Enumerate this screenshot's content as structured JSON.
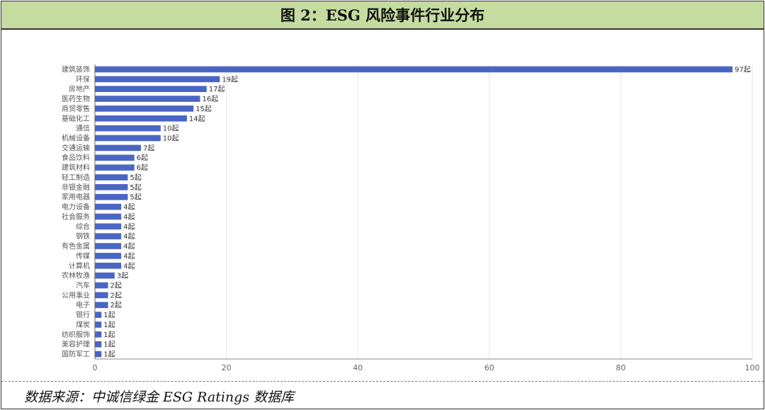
{
  "title": "图 2：ESG 风险事件行业分布",
  "source": "数据来源：中诚信绿金 ESG Ratings 数据库",
  "colors": {
    "bar": "#4a66c4",
    "header_bg": "#c6dba0",
    "grid": "#e6e6e6"
  },
  "chart_data": {
    "type": "bar",
    "orientation": "horizontal",
    "categories": [
      "建筑装饰",
      "环保",
      "房地产",
      "医药生物",
      "商贸零售",
      "基础化工",
      "通信",
      "机械设备",
      "交通运输",
      "食品饮料",
      "建筑材料",
      "轻工制造",
      "非银金融",
      "家用电器",
      "电力设备",
      "社会服务",
      "综合",
      "钢铁",
      "有色金属",
      "传媒",
      "计算机",
      "农林牧渔",
      "汽车",
      "公用事业",
      "电子",
      "银行",
      "煤炭",
      "纺织服饰",
      "美容护理",
      "国防军工"
    ],
    "values": [
      97,
      19,
      17,
      16,
      15,
      14,
      10,
      10,
      7,
      6,
      6,
      5,
      5,
      5,
      4,
      4,
      4,
      4,
      4,
      4,
      4,
      3,
      2,
      2,
      2,
      1,
      1,
      1,
      1,
      1
    ],
    "value_suffix": "起",
    "xlim": [
      0,
      100
    ],
    "xticks": [
      0,
      20,
      40,
      60,
      80,
      100
    ],
    "grid": true,
    "legend": "none"
  }
}
